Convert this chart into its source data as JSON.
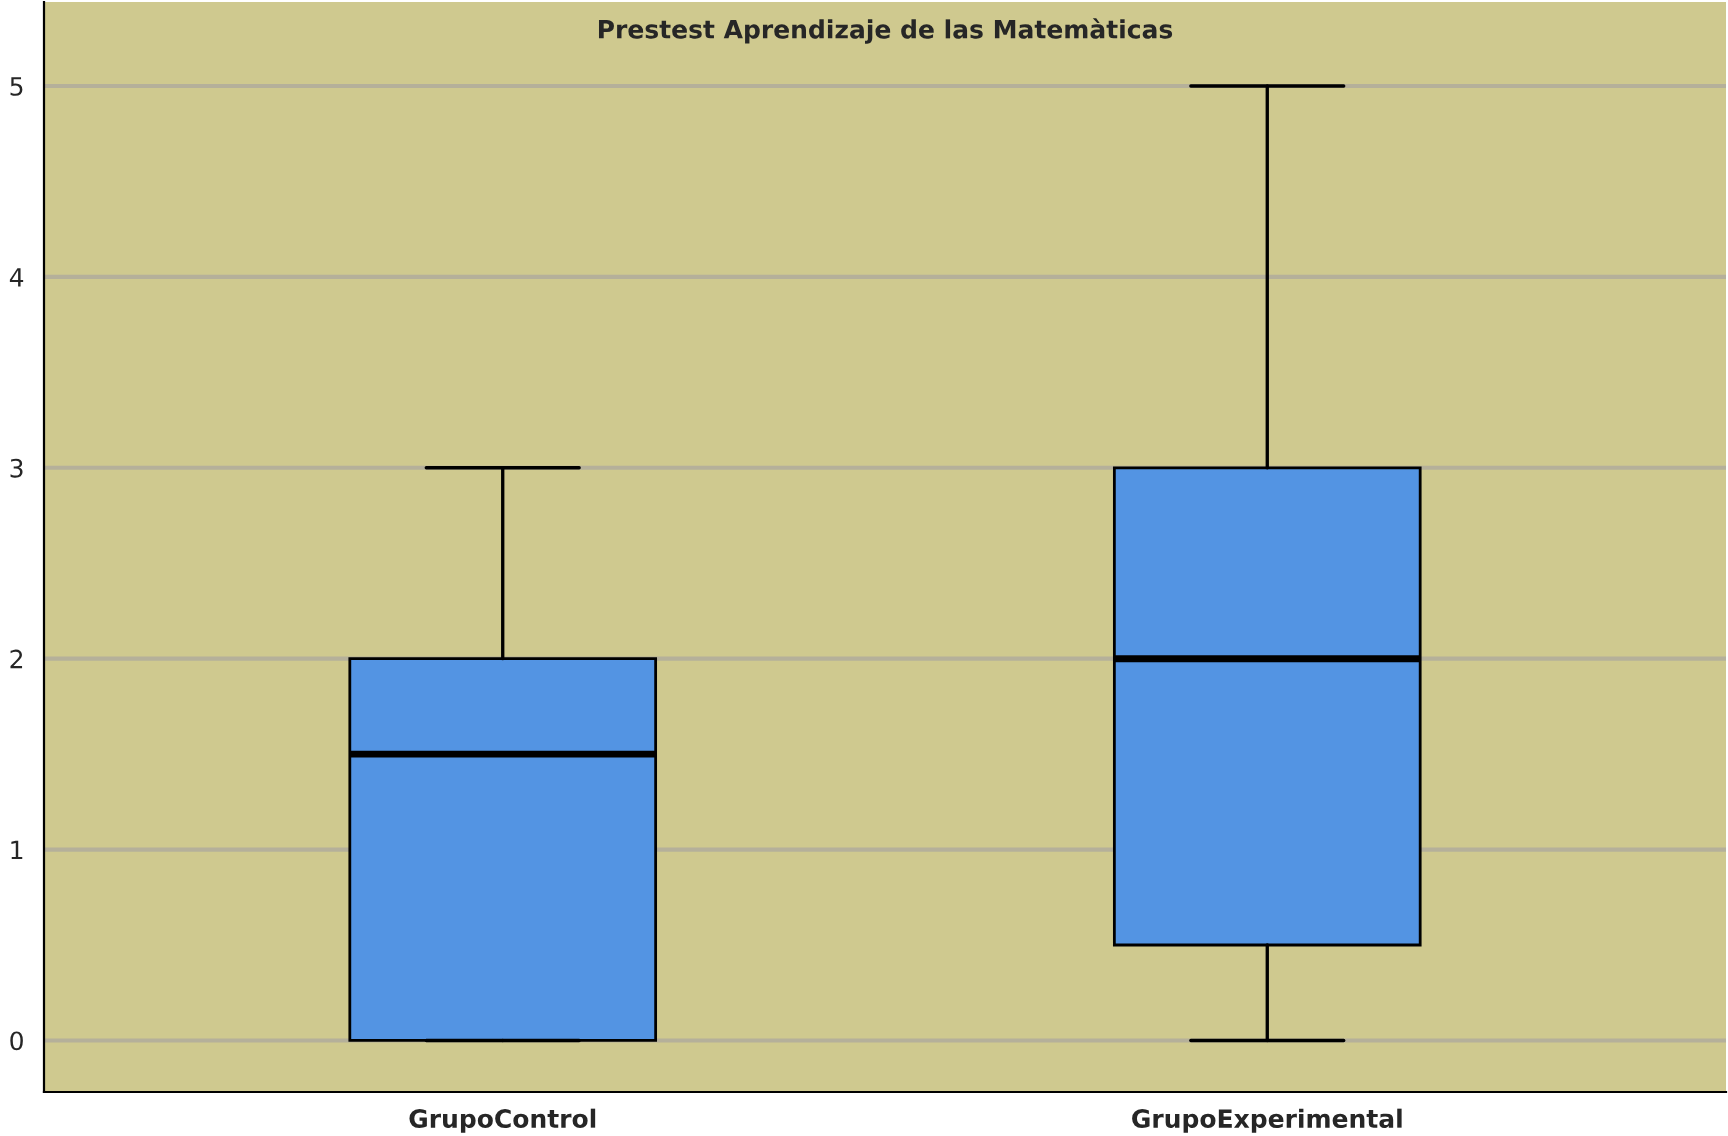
{
  "chart_data": {
    "type": "box",
    "title": "Prestest Aprendizaje de las Matemàticas",
    "categories": [
      "GrupoControl",
      "GrupoExperimental"
    ],
    "boxes": [
      {
        "low": 0,
        "q1": 0,
        "median": 1.5,
        "q3": 2,
        "high": 3
      },
      {
        "low": 0,
        "q1": 0.5,
        "median": 2,
        "q3": 3,
        "high": 5
      }
    ],
    "color": "#5394e3",
    "ylim": [
      -0.27,
      5.44
    ],
    "yticks": [
      0,
      1,
      2,
      3,
      4,
      5
    ],
    "grid": "y"
  }
}
